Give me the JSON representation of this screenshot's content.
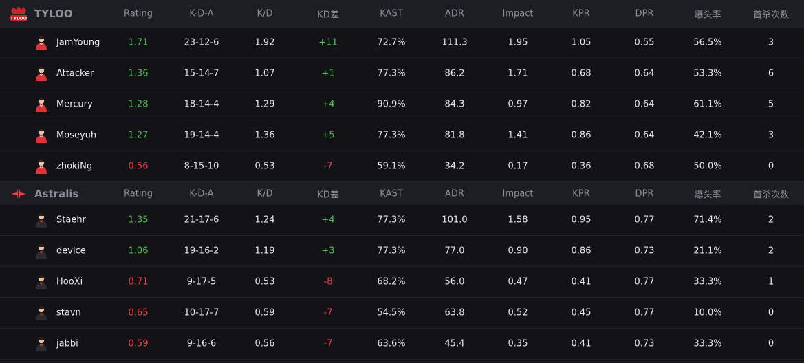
{
  "columns": [
    "Rating",
    "K-D-A",
    "K/D",
    "KD差",
    "KAST",
    "ADR",
    "Impact",
    "KPR",
    "DPR",
    "爆头率",
    "首杀次数"
  ],
  "colors": {
    "positive": "#4cc052",
    "negative": "#e8424a",
    "header_bg": "#1d1d24",
    "row_bg": "#121217"
  },
  "teams": [
    {
      "name": "TYLOO",
      "logo_text": "TYLOO",
      "logo_icon": "tyloo-logo-icon",
      "players": [
        {
          "name": "JamYoung",
          "rating": "1.71",
          "kda": "23-12-6",
          "kd": "1.92",
          "kddiff": "+11",
          "kast": "72.7%",
          "adr": "111.3",
          "impact": "1.95",
          "kpr": "1.05",
          "dpr": "0.55",
          "hs": "56.5%",
          "fk": "3"
        },
        {
          "name": "Attacker",
          "rating": "1.36",
          "kda": "15-14-7",
          "kd": "1.07",
          "kddiff": "+1",
          "kast": "77.3%",
          "adr": "86.2",
          "impact": "1.71",
          "kpr": "0.68",
          "dpr": "0.64",
          "hs": "53.3%",
          "fk": "6"
        },
        {
          "name": "Mercury",
          "rating": "1.28",
          "kda": "18-14-4",
          "kd": "1.29",
          "kddiff": "+4",
          "kast": "90.9%",
          "adr": "84.3",
          "impact": "0.97",
          "kpr": "0.82",
          "dpr": "0.64",
          "hs": "61.1%",
          "fk": "5"
        },
        {
          "name": "Moseyuh",
          "rating": "1.27",
          "kda": "19-14-4",
          "kd": "1.36",
          "kddiff": "+5",
          "kast": "77.3%",
          "adr": "81.8",
          "impact": "1.41",
          "kpr": "0.86",
          "dpr": "0.64",
          "hs": "42.1%",
          "fk": "3"
        },
        {
          "name": "zhokiNg",
          "rating": "0.56",
          "kda": "8-15-10",
          "kd": "0.53",
          "kddiff": "-7",
          "kast": "59.1%",
          "adr": "34.2",
          "impact": "0.17",
          "kpr": "0.36",
          "dpr": "0.68",
          "hs": "50.0%",
          "fk": "0"
        }
      ]
    },
    {
      "name": "Astralis",
      "logo_icon": "astralis-logo-icon",
      "players": [
        {
          "name": "Staehr",
          "rating": "1.35",
          "kda": "21-17-6",
          "kd": "1.24",
          "kddiff": "+4",
          "kast": "77.3%",
          "adr": "101.0",
          "impact": "1.58",
          "kpr": "0.95",
          "dpr": "0.77",
          "hs": "71.4%",
          "fk": "2"
        },
        {
          "name": "device",
          "rating": "1.06",
          "kda": "19-16-2",
          "kd": "1.19",
          "kddiff": "+3",
          "kast": "77.3%",
          "adr": "77.0",
          "impact": "0.90",
          "kpr": "0.86",
          "dpr": "0.73",
          "hs": "21.1%",
          "fk": "2"
        },
        {
          "name": "HooXi",
          "rating": "0.71",
          "kda": "9-17-5",
          "kd": "0.53",
          "kddiff": "-8",
          "kast": "68.2%",
          "adr": "56.0",
          "impact": "0.47",
          "kpr": "0.41",
          "dpr": "0.77",
          "hs": "33.3%",
          "fk": "1"
        },
        {
          "name": "stavn",
          "rating": "0.65",
          "kda": "10-17-7",
          "kd": "0.59",
          "kddiff": "-7",
          "kast": "54.5%",
          "adr": "63.8",
          "impact": "0.52",
          "kpr": "0.45",
          "dpr": "0.77",
          "hs": "10.0%",
          "fk": "0"
        },
        {
          "name": "jabbi",
          "rating": "0.59",
          "kda": "9-16-6",
          "kd": "0.56",
          "kddiff": "-7",
          "kast": "63.6%",
          "adr": "45.4",
          "impact": "0.35",
          "kpr": "0.41",
          "dpr": "0.73",
          "hs": "33.3%",
          "fk": "0"
        }
      ]
    }
  ]
}
